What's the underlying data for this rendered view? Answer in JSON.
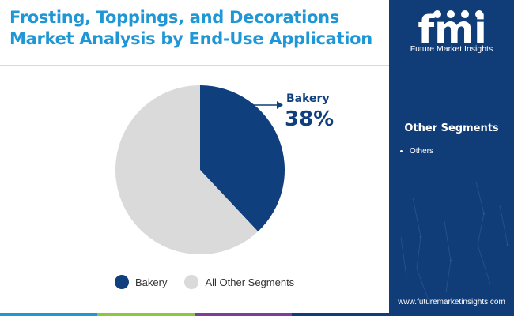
{
  "title": {
    "line1": "Frosting, Toppings, and Decorations",
    "line2": "Market Analysis by End-Use Application"
  },
  "chart_data": {
    "type": "pie",
    "title": "Frosting, Toppings, and Decorations Market Analysis by End-Use Application",
    "slices": [
      {
        "label": "Bakery",
        "value": 38,
        "color": "#0f3f7c"
      },
      {
        "label": "All Other Segments",
        "value": 62,
        "color": "#dadada"
      }
    ],
    "callout": {
      "label": "Bakery",
      "value": "38%"
    },
    "legend_position": "bottom"
  },
  "legend": {
    "items": [
      {
        "label": "Bakery",
        "color": "#0f3f7c"
      },
      {
        "label": "All Other Segments",
        "color": "#dadada"
      }
    ]
  },
  "sidebar": {
    "logo_text": "fmi",
    "tagline": "Future Market Insights",
    "other_segments_title": "Other Segments",
    "other_segments_items": [
      "Others"
    ],
    "website": "www.futuremarketinsights.com"
  },
  "colors": {
    "title": "#1f97d6",
    "brand_navy": "#103c78",
    "bottom_bar": [
      "#1f97d6",
      "#8dc63f",
      "#7b3f99",
      "#103c78"
    ]
  }
}
